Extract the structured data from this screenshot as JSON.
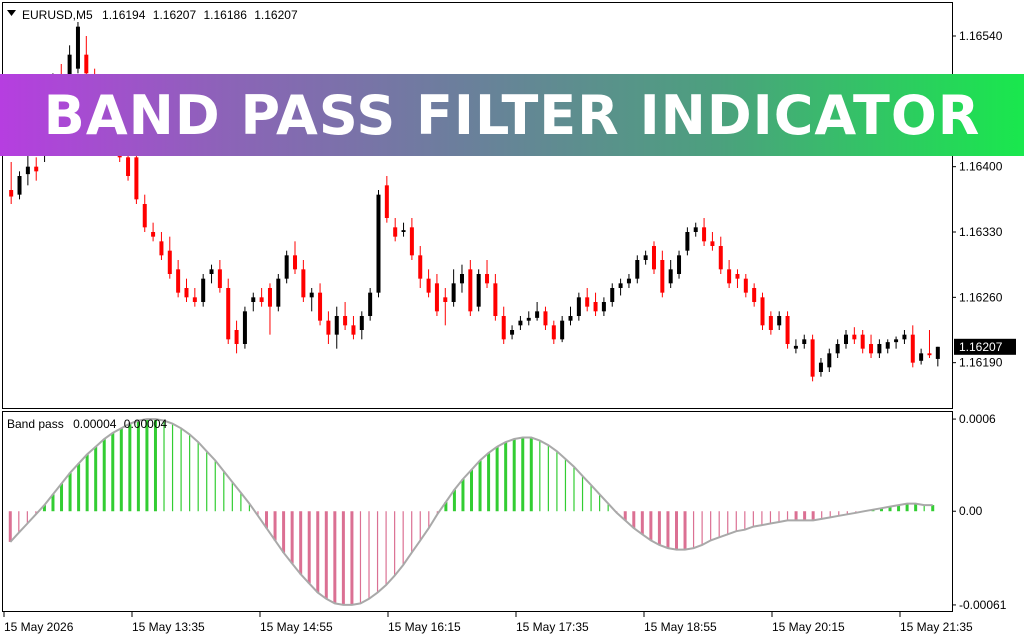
{
  "banner": {
    "title": "BAND PASS FILTER INDICATOR"
  },
  "symbol_info": {
    "symbol": "EURUSD,M5",
    "open": "1.16194",
    "high": "1.16207",
    "low": "1.16186",
    "close": "1.16207"
  },
  "indicator_info": {
    "name": "Band pass",
    "value1": "0.00004",
    "value2": "0.00004"
  },
  "colors": {
    "bull_candle": "#000000",
    "bear_candle": "#ff0000",
    "doji_candle": "#32cd32",
    "hist_positive": "#32cd32",
    "hist_negative": "#db7093",
    "filter_line": "#a9a9a9",
    "current_price_bg": "#000000"
  },
  "chart_data": [
    {
      "type": "candlestick",
      "symbol": "EURUSD",
      "timeframe": "M5",
      "y_ticks": [
        "1.16540",
        "1.16400",
        "1.16330",
        "1.16260",
        "1.16190"
      ],
      "ylim": [
        1.1615,
        1.1657
      ],
      "current_price": "1.16207",
      "x_ticks": [
        "15 May 2026",
        "15 May 13:35",
        "15 May 14:55",
        "15 May 16:15",
        "15 May 17:35",
        "15 May 18:55",
        "15 May 20:15",
        "15 May 21:35"
      ],
      "candles": [
        [
          1.16375,
          1.16405,
          1.1636,
          1.16368
        ],
        [
          1.1637,
          1.16395,
          1.16365,
          1.1639
        ],
        [
          1.16392,
          1.1642,
          1.1638,
          1.164
        ],
        [
          1.164,
          1.1641,
          1.16385,
          1.16395
        ],
        [
          1.16415,
          1.1648,
          1.16405,
          1.1647
        ],
        [
          1.1647,
          1.165,
          1.1646,
          1.1649
        ],
        [
          1.1649,
          1.1651,
          1.1647,
          1.16475
        ],
        [
          1.16475,
          1.1653,
          1.1647,
          1.1652
        ],
        [
          1.16505,
          1.16555,
          1.165,
          1.1655
        ],
        [
          1.1652,
          1.1654,
          1.1649,
          1.165
        ],
        [
          1.16495,
          1.16505,
          1.1643,
          1.1644
        ],
        [
          1.1646,
          1.1647,
          1.1643,
          1.16435
        ],
        [
          1.16455,
          1.16475,
          1.16425,
          1.1643
        ],
        [
          1.1643,
          1.1644,
          1.16405,
          1.1641
        ],
        [
          1.1641,
          1.1642,
          1.16385,
          1.1639
        ],
        [
          1.1641,
          1.16425,
          1.1636,
          1.16365
        ],
        [
          1.1636,
          1.1637,
          1.1633,
          1.16335
        ],
        [
          1.1633,
          1.1634,
          1.1632,
          1.16325
        ],
        [
          1.1632,
          1.1633,
          1.163,
          1.16305
        ],
        [
          1.1631,
          1.16325,
          1.1628,
          1.16285
        ],
        [
          1.1629,
          1.163,
          1.1626,
          1.16265
        ],
        [
          1.1627,
          1.1628,
          1.16255,
          1.1626
        ],
        [
          1.1626,
          1.1627,
          1.1625,
          1.16255
        ],
        [
          1.16255,
          1.16285,
          1.1625,
          1.1628
        ],
        [
          1.16285,
          1.16295,
          1.16275,
          1.1629
        ],
        [
          1.1629,
          1.163,
          1.16265,
          1.1627
        ],
        [
          1.1627,
          1.1628,
          1.1621,
          1.16215
        ],
        [
          1.16225,
          1.16235,
          1.162,
          1.1621
        ],
        [
          1.1621,
          1.1625,
          1.16205,
          1.16245
        ],
        [
          1.16255,
          1.16265,
          1.16245,
          1.1626
        ],
        [
          1.1626,
          1.1627,
          1.1625,
          1.16255
        ],
        [
          1.1627,
          1.16275,
          1.1622,
          1.1625
        ],
        [
          1.1625,
          1.16285,
          1.16245,
          1.1628
        ],
        [
          1.1628,
          1.1631,
          1.16275,
          1.16305
        ],
        [
          1.16305,
          1.1632,
          1.16285,
          1.1629
        ],
        [
          1.1629,
          1.163,
          1.16255,
          1.1626
        ],
        [
          1.1626,
          1.1627,
          1.16245,
          1.16265
        ],
        [
          1.16265,
          1.16275,
          1.1623,
          1.16235
        ],
        [
          1.16235,
          1.16245,
          1.1621,
          1.1622
        ],
        [
          1.1622,
          1.1625,
          1.16205,
          1.1624
        ],
        [
          1.1624,
          1.16255,
          1.16225,
          1.1623
        ],
        [
          1.1623,
          1.1624,
          1.16215,
          1.1622
        ],
        [
          1.16225,
          1.16245,
          1.16215,
          1.1624
        ],
        [
          1.1624,
          1.1627,
          1.16235,
          1.16265
        ],
        [
          1.16265,
          1.16375,
          1.1626,
          1.1637
        ],
        [
          1.1638,
          1.1639,
          1.1634,
          1.16345
        ],
        [
          1.16335,
          1.16345,
          1.1632,
          1.16325
        ],
        [
          1.1633,
          1.1634,
          1.16325,
          1.16332
        ],
        [
          1.16335,
          1.16345,
          1.163,
          1.16305
        ],
        [
          1.16305,
          1.16315,
          1.1627,
          1.1628
        ],
        [
          1.1628,
          1.1629,
          1.1626,
          1.16265
        ],
        [
          1.16275,
          1.16285,
          1.1624,
          1.16245
        ],
        [
          1.1626,
          1.1627,
          1.1623,
          1.16255
        ],
        [
          1.16255,
          1.1629,
          1.1625,
          1.16275
        ],
        [
          1.16275,
          1.16295,
          1.16265,
          1.16285
        ],
        [
          1.1629,
          1.163,
          1.1624,
          1.16245
        ],
        [
          1.1625,
          1.1629,
          1.16245,
          1.16285
        ],
        [
          1.16285,
          1.163,
          1.1627,
          1.16275
        ],
        [
          1.16275,
          1.16285,
          1.16235,
          1.1624
        ],
        [
          1.1624,
          1.1625,
          1.1621,
          1.16215
        ],
        [
          1.1622,
          1.1623,
          1.16215,
          1.16225
        ],
        [
          1.1623,
          1.1624,
          1.16225,
          1.16235
        ],
        [
          1.16235,
          1.16245,
          1.1623,
          1.16238
        ],
        [
          1.16238,
          1.16255,
          1.16235,
          1.16245
        ],
        [
          1.16245,
          1.1625,
          1.16225,
          1.1623
        ],
        [
          1.1623,
          1.16235,
          1.1621,
          1.16215
        ],
        [
          1.16215,
          1.1624,
          1.16212,
          1.16235
        ],
        [
          1.16235,
          1.1625,
          1.1623,
          1.1624
        ],
        [
          1.1624,
          1.16265,
          1.16235,
          1.1626
        ],
        [
          1.1626,
          1.1627,
          1.16245,
          1.1625
        ],
        [
          1.16255,
          1.16265,
          1.1624,
          1.16245
        ],
        [
          1.16245,
          1.1626,
          1.1624,
          1.16255
        ],
        [
          1.16255,
          1.16275,
          1.1625,
          1.1627
        ],
        [
          1.1627,
          1.1628,
          1.16262,
          1.16275
        ],
        [
          1.16275,
          1.16285,
          1.1627,
          1.1628
        ],
        [
          1.1628,
          1.16305,
          1.16275,
          1.163
        ],
        [
          1.163,
          1.1631,
          1.16295,
          1.16305
        ],
        [
          1.16315,
          1.1632,
          1.16285,
          1.1629
        ],
        [
          1.163,
          1.1631,
          1.1626,
          1.16265
        ],
        [
          1.16275,
          1.163,
          1.1627,
          1.1629
        ],
        [
          1.16285,
          1.1631,
          1.1628,
          1.16305
        ],
        [
          1.1631,
          1.16335,
          1.16305,
          1.1633
        ],
        [
          1.1633,
          1.1634,
          1.16325,
          1.16335
        ],
        [
          1.16335,
          1.16345,
          1.16315,
          1.1632
        ],
        [
          1.1632,
          1.1633,
          1.1631,
          1.16315
        ],
        [
          1.16315,
          1.16325,
          1.16285,
          1.1629
        ],
        [
          1.1629,
          1.163,
          1.1627,
          1.16275
        ],
        [
          1.16285,
          1.1629,
          1.1627,
          1.1628
        ],
        [
          1.1628,
          1.16285,
          1.1626,
          1.16265
        ],
        [
          1.1627,
          1.16275,
          1.1625,
          1.16255
        ],
        [
          1.1626,
          1.16265,
          1.16225,
          1.1623
        ],
        [
          1.1624,
          1.16245,
          1.1622,
          1.16225
        ],
        [
          1.1623,
          1.16245,
          1.16225,
          1.1624
        ],
        [
          1.1624,
          1.16245,
          1.16205,
          1.1621
        ],
        [
          1.16205,
          1.16215,
          1.162,
          1.16208
        ],
        [
          1.1621,
          1.1622,
          1.16205,
          1.16215
        ],
        [
          1.16215,
          1.1622,
          1.1617,
          1.16175
        ],
        [
          1.1618,
          1.16195,
          1.16175,
          1.1619
        ],
        [
          1.16185,
          1.16205,
          1.1618,
          1.162
        ],
        [
          1.162,
          1.16215,
          1.16195,
          1.1621
        ],
        [
          1.1621,
          1.16225,
          1.16205,
          1.1622
        ],
        [
          1.1622,
          1.16228,
          1.1621,
          1.16215
        ],
        [
          1.1622,
          1.16225,
          1.162,
          1.16205
        ],
        [
          1.1621,
          1.1622,
          1.16195,
          1.162
        ],
        [
          1.162,
          1.16215,
          1.16195,
          1.1621
        ],
        [
          1.16205,
          1.16215,
          1.162,
          1.16212
        ],
        [
          1.16212,
          1.16218,
          1.16205,
          1.16215
        ],
        [
          1.16215,
          1.16225,
          1.1621,
          1.1622
        ],
        [
          1.1622,
          1.1623,
          1.16185,
          1.1619
        ],
        [
          1.16192,
          1.16205,
          1.16188,
          1.162
        ],
        [
          1.162,
          1.16225,
          1.16195,
          1.16198
        ],
        [
          1.16194,
          1.16207,
          1.16186,
          1.16207
        ]
      ]
    },
    {
      "type": "bar",
      "name": "Band pass",
      "y_ticks": [
        "0.0006",
        "0.00",
        "-0.00061"
      ],
      "ylim": [
        -0.00063,
        0.00062
      ],
      "values": [
        -0.0002,
        -0.00014,
        -8e-05,
        -2e-05,
        4e-05,
        0.00011,
        0.00018,
        0.00025,
        0.00031,
        0.00037,
        0.00042,
        0.00047,
        0.00051,
        0.00054,
        0.00057,
        0.00059,
        0.0006,
        0.0006,
        0.00059,
        0.00057,
        0.00054,
        0.0005,
        0.00045,
        0.00039,
        0.00033,
        0.00026,
        0.00019,
        0.00012,
        5e-05,
        -3e-05,
        -0.00011,
        -0.00019,
        -0.00027,
        -0.00034,
        -0.00041,
        -0.00047,
        -0.00053,
        -0.00057,
        -0.0006,
        -0.00061,
        -0.00061,
        -0.0006,
        -0.00057,
        -0.00053,
        -0.00048,
        -0.00042,
        -0.00035,
        -0.00027,
        -0.00019,
        -0.00011,
        -2e-05,
        6e-05,
        0.00014,
        0.00021,
        0.00027,
        0.00033,
        0.00038,
        0.00042,
        0.00045,
        0.00047,
        0.00048,
        0.00048,
        0.00046,
        0.00043,
        0.00039,
        0.00034,
        0.00029,
        0.00023,
        0.00017,
        0.00011,
        5e-05,
        -1e-05,
        -6e-05,
        -0.00011,
        -0.00015,
        -0.00019,
        -0.00022,
        -0.00024,
        -0.00025,
        -0.00025,
        -0.00024,
        -0.00022,
        -0.00019,
        -0.00017,
        -0.00015,
        -0.00013,
        -0.00012,
        -0.0001,
        -9e-05,
        -8e-05,
        -7e-05,
        -6e-05,
        -6e-05,
        -6e-05,
        -6e-05,
        -5e-05,
        -4e-05,
        -3e-05,
        -2e-05,
        -1e-05,
        0.0,
        1e-05,
        2e-05,
        3e-05,
        4e-05,
        5e-05,
        5e-05,
        4e-05,
        4e-05
      ]
    }
  ]
}
